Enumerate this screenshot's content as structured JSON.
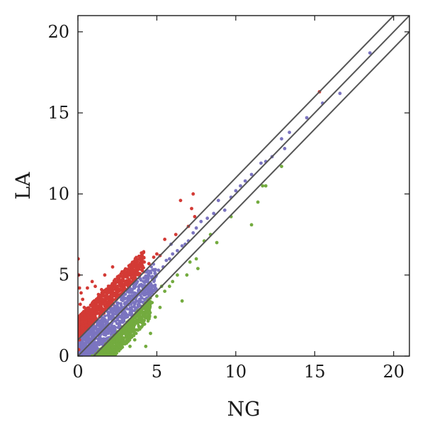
{
  "chart_data": {
    "type": "scatter",
    "title": "",
    "xlabel": "NG",
    "ylabel": "LA",
    "xlim": [
      0,
      21
    ],
    "ylim": [
      0,
      21
    ],
    "xticks": [
      0,
      5,
      10,
      15,
      20
    ],
    "yticks": [
      0,
      5,
      10,
      15,
      20
    ],
    "grid": false,
    "legend": "none",
    "reference_lines": [
      {
        "slope": 1,
        "intercept": 1
      },
      {
        "slope": 1,
        "intercept": 0
      },
      {
        "slope": 1,
        "intercept": -1
      }
    ],
    "series": [
      {
        "color": "#d33a35",
        "points": [
          [
            0.02,
            6.0
          ],
          [
            0.05,
            5.0
          ],
          [
            0.1,
            4.2
          ],
          [
            0.2,
            3.9
          ],
          [
            0.3,
            3.5
          ],
          [
            0.15,
            3.2
          ],
          [
            0.4,
            3.0
          ],
          [
            0.6,
            4.2
          ],
          [
            0.9,
            4.6
          ],
          [
            1.1,
            4.3
          ],
          [
            1.3,
            3.8
          ],
          [
            1.5,
            4.1
          ],
          [
            1.8,
            4.0
          ],
          [
            2.0,
            4.3
          ],
          [
            1.7,
            5.0
          ],
          [
            2.2,
            5.5
          ],
          [
            2.5,
            4.8
          ],
          [
            2.8,
            5.2
          ],
          [
            3.0,
            4.5
          ],
          [
            3.3,
            5.0
          ],
          [
            3.6,
            5.3
          ],
          [
            3.9,
            5.6
          ],
          [
            4.2,
            5.8
          ],
          [
            4.5,
            5.7
          ],
          [
            4.8,
            6.1
          ],
          [
            5.0,
            6.3
          ],
          [
            5.2,
            6.2
          ],
          [
            5.5,
            7.2
          ],
          [
            6.2,
            7.5
          ],
          [
            6.5,
            9.6
          ],
          [
            7.0,
            8.0
          ],
          [
            7.3,
            10.0
          ],
          [
            7.2,
            9.1
          ],
          [
            7.4,
            8.6
          ],
          [
            15.3,
            16.3
          ],
          [
            0.05,
            0.4
          ],
          [
            0.1,
            1.0
          ],
          [
            0.2,
            1.8
          ],
          [
            0.3,
            1.5
          ],
          [
            0.5,
            2.1
          ],
          [
            0.7,
            2.4
          ],
          [
            0.9,
            2.8
          ],
          [
            1.0,
            3.1
          ],
          [
            1.2,
            3.3
          ],
          [
            1.4,
            2.9
          ],
          [
            1.6,
            3.4
          ],
          [
            1.9,
            3.6
          ],
          [
            2.1,
            3.8
          ],
          [
            2.4,
            3.9
          ],
          [
            2.6,
            4.0
          ]
        ]
      },
      {
        "color": "#7b74c0",
        "points": [
          [
            18.5,
            18.7
          ],
          [
            16.6,
            16.2
          ],
          [
            15.5,
            15.6
          ],
          [
            14.5,
            14.7
          ],
          [
            13.4,
            13.8
          ],
          [
            13.1,
            12.8
          ],
          [
            12.9,
            13.4
          ],
          [
            12.3,
            12.3
          ],
          [
            11.9,
            12.0
          ],
          [
            11.6,
            11.9
          ],
          [
            11.0,
            11.2
          ],
          [
            10.6,
            10.8
          ],
          [
            10.3,
            10.5
          ],
          [
            10.0,
            10.2
          ],
          [
            9.7,
            9.8
          ],
          [
            9.3,
            9.0
          ],
          [
            8.9,
            9.6
          ],
          [
            8.6,
            8.8
          ],
          [
            8.2,
            8.5
          ],
          [
            7.8,
            8.3
          ],
          [
            7.5,
            7.9
          ],
          [
            7.3,
            7.6
          ],
          [
            7.0,
            7.1
          ],
          [
            6.8,
            6.9
          ],
          [
            6.6,
            6.8
          ],
          [
            6.3,
            6.5
          ],
          [
            6.0,
            6.3
          ],
          [
            5.8,
            6.0
          ],
          [
            5.6,
            5.9
          ],
          [
            5.4,
            5.5
          ],
          [
            5.1,
            5.3
          ],
          [
            4.9,
            5.1
          ],
          [
            4.7,
            4.8
          ],
          [
            4.4,
            4.6
          ],
          [
            4.1,
            4.3
          ],
          [
            3.9,
            4.0
          ],
          [
            3.6,
            3.8
          ],
          [
            3.3,
            3.5
          ],
          [
            3.0,
            3.3
          ],
          [
            2.7,
            2.9
          ],
          [
            2.4,
            2.6
          ],
          [
            2.1,
            2.3
          ],
          [
            1.8,
            2.0
          ],
          [
            1.5,
            1.8
          ],
          [
            1.2,
            1.4
          ],
          [
            0.9,
            1.2
          ],
          [
            0.6,
            0.9
          ],
          [
            0.3,
            0.6
          ],
          [
            0.1,
            0.2
          ],
          [
            5.9,
            6.9
          ]
        ]
      },
      {
        "color": "#73ab3f",
        "points": [
          [
            12.9,
            11.7
          ],
          [
            11.7,
            10.5
          ],
          [
            11.9,
            10.5
          ],
          [
            11.4,
            9.5
          ],
          [
            11.0,
            8.1
          ],
          [
            9.7,
            8.6
          ],
          [
            8.8,
            7.0
          ],
          [
            8.0,
            7.1
          ],
          [
            7.5,
            6.0
          ],
          [
            7.6,
            5.4
          ],
          [
            6.9,
            5.0
          ],
          [
            6.6,
            3.4
          ],
          [
            6.0,
            4.6
          ],
          [
            5.3,
            4.3
          ],
          [
            5.0,
            3.7
          ],
          [
            4.7,
            3.3
          ],
          [
            4.3,
            2.8
          ],
          [
            4.0,
            2.1
          ],
          [
            3.8,
            1.6
          ],
          [
            3.6,
            1.0
          ],
          [
            3.4,
            2.0
          ],
          [
            3.3,
            0.6
          ],
          [
            3.1,
            1.4
          ],
          [
            2.9,
            0.9
          ],
          [
            2.7,
            1.3
          ],
          [
            2.5,
            0.4
          ],
          [
            2.3,
            0.9
          ],
          [
            2.1,
            0.3
          ],
          [
            1.9,
            0.5
          ],
          [
            1.7,
            0.1
          ],
          [
            1.5,
            0.2
          ],
          [
            4.3,
            0.6
          ],
          [
            4.6,
            1.4
          ],
          [
            4.9,
            2.4
          ],
          [
            5.2,
            3.0
          ],
          [
            5.5,
            4.0
          ],
          [
            5.8,
            4.3
          ],
          [
            6.3,
            5.0
          ],
          [
            7.1,
            5.8
          ],
          [
            8.4,
            7.5
          ]
        ]
      }
    ],
    "cloud_bands": [
      {
        "color": "#d33a35",
        "x_range": [
          0,
          4.2
        ],
        "offset_min": 1.0,
        "offset_max": 2.4
      },
      {
        "color": "#7b74c0",
        "x_range": [
          0,
          5.0
        ],
        "offset_min": -0.9,
        "offset_max": 0.9
      },
      {
        "color": "#73ab3f",
        "x_range": [
          0.9,
          4.6
        ],
        "offset_min": -2.3,
        "offset_max": -1.0
      }
    ]
  }
}
